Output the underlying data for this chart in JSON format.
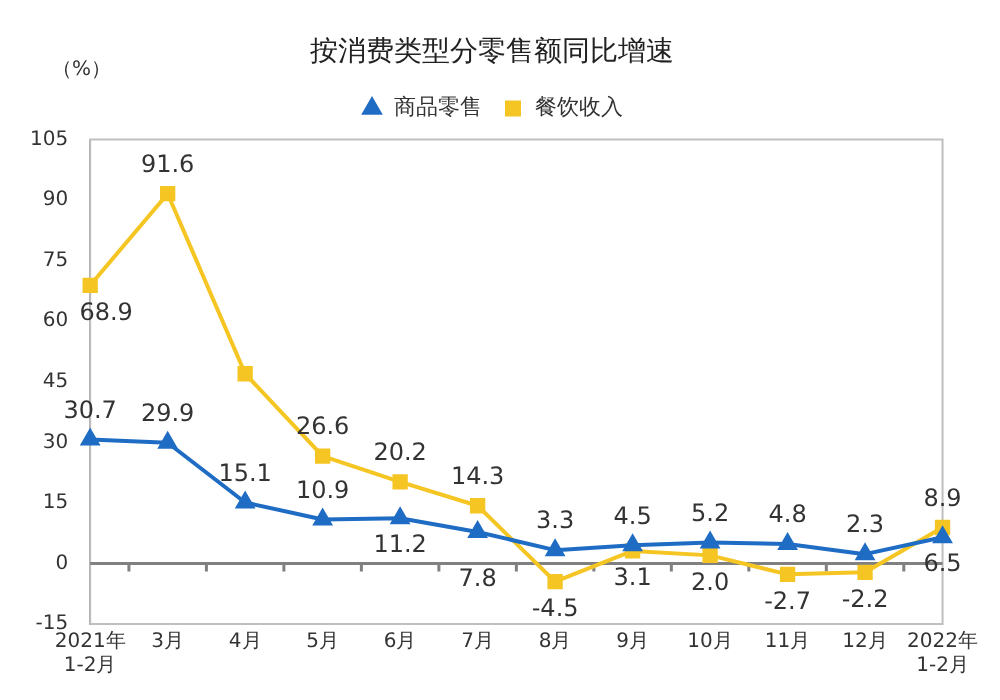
{
  "chart_data": {
    "type": "line",
    "title": "按消费类型分零售额同比增速",
    "annotations": [
      "（%）"
    ],
    "categories": [
      "2021年\n1-2月",
      "3月",
      "4月",
      "5月",
      "6月",
      "7月",
      "8月",
      "9月",
      "10月",
      "11月",
      "12月",
      "2022年\n1-2月"
    ],
    "series": [
      {
        "name": "商品零售",
        "color": "#1f6cc4",
        "marker": "triangle",
        "values": [
          30.7,
          29.9,
          15.1,
          10.9,
          11.2,
          7.8,
          3.3,
          4.5,
          5.2,
          4.8,
          2.3,
          6.5
        ],
        "value_labels": [
          "30.7",
          "29.9",
          "15.1",
          "10.9",
          "11.2",
          "7.8",
          "3.3",
          "4.5",
          "5.2",
          "4.8",
          "2.3",
          "6.5"
        ]
      },
      {
        "name": "餐饮收入",
        "color": "#f5c623",
        "marker": "square",
        "values": [
          68.9,
          91.6,
          47,
          26.6,
          20.2,
          14.3,
          -4.5,
          3.1,
          2.0,
          -2.7,
          -2.2,
          8.9
        ],
        "value_labels": [
          "68.9",
          "91.6",
          null,
          "26.6",
          "20.2",
          "14.3",
          "-4.5",
          "3.1",
          "2.0",
          "-2.7",
          "-2.2",
          "8.9"
        ]
      }
    ],
    "ylim": [
      -15,
      105
    ],
    "yticks": [
      -15,
      0,
      15,
      30,
      45,
      60,
      75,
      90,
      105
    ],
    "ref_lines": [
      {
        "axis": "y",
        "value": 0,
        "color": "#808080"
      }
    ],
    "grid": false,
    "legend": "top",
    "line_style": "solid"
  }
}
